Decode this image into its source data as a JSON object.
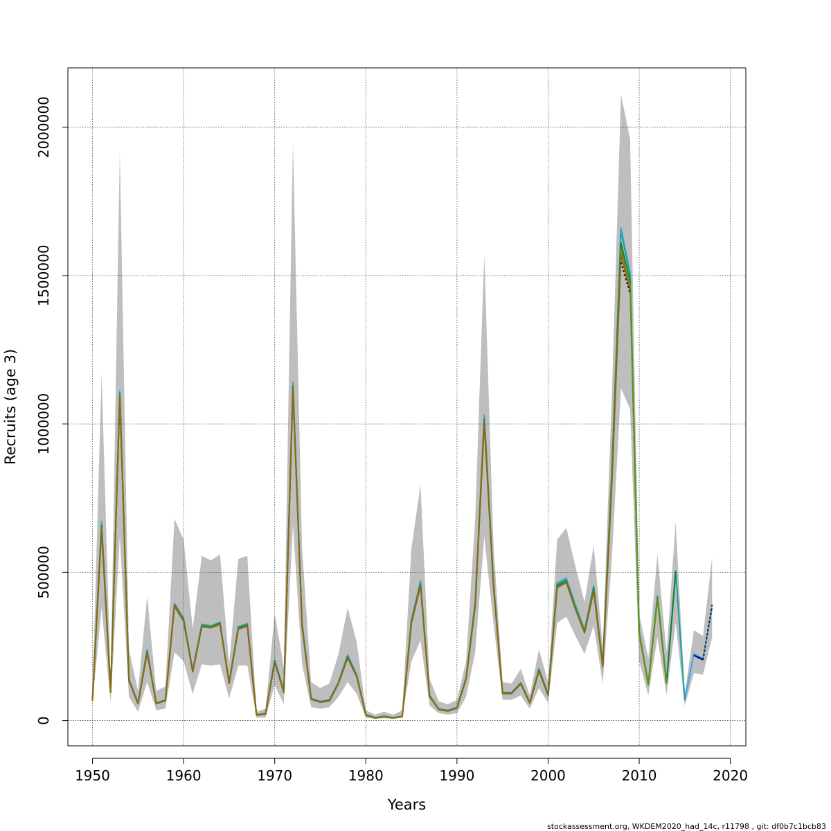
{
  "footer_text": "stockassessment.org, WKDEM2020_had_14c, r11798 , git: df0b7c1bcb83",
  "chart_data": {
    "type": "line",
    "title": "",
    "xlabel": "Years",
    "ylabel": "Recruits (age 3)",
    "xlim": [
      1947.3,
      2021.7
    ],
    "ylim": [
      -85000,
      2200000
    ],
    "x_ticks": [
      1950,
      1960,
      1970,
      1980,
      1990,
      2000,
      2010,
      2020
    ],
    "y_ticks": [
      0,
      500000,
      1000000,
      1500000,
      2000000
    ],
    "x_tick_labels": [
      "1950",
      "1960",
      "1970",
      "1980",
      "1990",
      "2000",
      "2010",
      "2020"
    ],
    "y_tick_labels": [
      "0",
      "500000",
      "1000000",
      "1500000",
      "2000000"
    ],
    "grid": true,
    "band_color": "#bebebe",
    "x": [
      1950,
      1951,
      1952,
      1953,
      1954,
      1955,
      1956,
      1957,
      1958,
      1959,
      1960,
      1961,
      1962,
      1963,
      1964,
      1965,
      1966,
      1967,
      1968,
      1969,
      1970,
      1971,
      1972,
      1973,
      1974,
      1975,
      1976,
      1977,
      1978,
      1979,
      1980,
      1981,
      1982,
      1983,
      1984,
      1985,
      1986,
      1987,
      1988,
      1989,
      1990,
      1991,
      1992,
      1993,
      1994,
      1995,
      1996,
      1997,
      1998,
      1999,
      2000,
      2001,
      2002,
      2003,
      2004,
      2005,
      2006,
      2007,
      2008,
      2009,
      2010,
      2011,
      2012,
      2013,
      2014,
      2015,
      2016,
      2017,
      2018
    ],
    "band_lower": [
      60000,
      380000,
      60000,
      620000,
      80000,
      30000,
      130000,
      35000,
      40000,
      230000,
      200000,
      90000,
      190000,
      185000,
      190000,
      75000,
      185000,
      185000,
      10000,
      10000,
      120000,
      55000,
      660000,
      190000,
      45000,
      40000,
      45000,
      80000,
      130000,
      90000,
      10000,
      5000,
      8000,
      5000,
      10000,
      200000,
      270000,
      50000,
      25000,
      20000,
      25000,
      80000,
      230000,
      620000,
      330000,
      70000,
      70000,
      85000,
      40000,
      110000,
      60000,
      330000,
      350000,
      285000,
      225000,
      320000,
      125000,
      550000,
      1120000,
      1050000,
      200000,
      85000,
      280000,
      85000,
      330000,
      50000,
      160000,
      155000,
      280000
    ],
    "band_upper": [
      90000,
      1170000,
      130000,
      1920000,
      240000,
      100000,
      420000,
      100000,
      115000,
      680000,
      610000,
      310000,
      555000,
      540000,
      560000,
      190000,
      545000,
      555000,
      30000,
      40000,
      360000,
      180000,
      1950000,
      580000,
      130000,
      110000,
      125000,
      225000,
      380000,
      265000,
      35000,
      20000,
      30000,
      20000,
      35000,
      580000,
      795000,
      140000,
      65000,
      55000,
      70000,
      200000,
      680000,
      1570000,
      600000,
      130000,
      125000,
      175000,
      85000,
      240000,
      130000,
      610000,
      650000,
      520000,
      400000,
      590000,
      250000,
      1100000,
      2110000,
      1960000,
      360000,
      210000,
      560000,
      230000,
      670000,
      90000,
      305000,
      285000,
      550000
    ],
    "series": [
      {
        "color": "#3ea0e8",
        "width": 2.0,
        "y": [
          70000,
          670000,
          100000,
          1110000,
          140000,
          60000,
          240000,
          60000,
          70000,
          395000,
          345000,
          170000,
          325000,
          320000,
          332000,
          130000,
          317000,
          327000,
          20000,
          25000,
          205000,
          100000,
          1140000,
          330000,
          75000,
          65000,
          70000,
          130000,
          222000,
          155000,
          20000,
          10000,
          15000,
          10000,
          15000,
          340000,
          470000,
          85000,
          40000,
          35000,
          45000,
          145000,
          400000,
          1030000,
          470000,
          95000,
          95000,
          128000,
          62000,
          175000,
          90000,
          465000,
          480000,
          390000,
          305000,
          455000,
          190000,
          850000,
          1660000,
          1510000,
          300000,
          125000,
          420000,
          130000,
          505000,
          70000,
          225000,
          210000,
          380000
        ]
      },
      {
        "color": "#1fa39a",
        "width": 2.0,
        "y": [
          70000,
          660000,
          98000,
          1105000,
          138000,
          59000,
          236000,
          59000,
          69000,
          392000,
          342000,
          168000,
          322000,
          318000,
          330000,
          128000,
          315000,
          325000,
          20000,
          24000,
          202000,
          98000,
          1130000,
          325000,
          74000,
          64000,
          69000,
          128000,
          218000,
          152000,
          20000,
          10000,
          15000,
          10000,
          15000,
          336000,
          464000,
          84000,
          39000,
          34000,
          44000,
          143000,
          395000,
          1020000,
          465000,
          94000,
          94000,
          126000,
          61000,
          172000,
          88000,
          460000,
          475000,
          385000,
          302000,
          450000,
          188000,
          840000,
          1650000,
          1500000,
          297000,
          123000,
          418000,
          128000,
          505000,
          68000,
          null,
          null,
          null
        ]
      },
      {
        "color": "#1a7a35",
        "width": 2.0,
        "y": [
          68000,
          655000,
          96000,
          1100000,
          136000,
          58000,
          232000,
          58000,
          68000,
          390000,
          340000,
          166000,
          320000,
          316000,
          328000,
          127000,
          312000,
          322000,
          19000,
          23000,
          200000,
          97000,
          1125000,
          322000,
          73000,
          63000,
          68000,
          127000,
          215000,
          150000,
          19000,
          9500,
          14000,
          9500,
          14000,
          333000,
          460000,
          83000,
          38000,
          33000,
          43000,
          141000,
          390000,
          1015000,
          460000,
          93000,
          93000,
          125000,
          60000,
          170000,
          87000,
          455000,
          470000,
          380000,
          300000,
          445000,
          185000,
          830000,
          1610000,
          1480000,
          294000,
          121000,
          415000,
          126000,
          500000,
          null,
          null,
          null,
          null
        ]
      },
      {
        "color": "#6a8f10",
        "width": 2.0,
        "y": [
          68000,
          650000,
          95000,
          1095000,
          135000,
          58000,
          230000,
          58000,
          67000,
          388000,
          338000,
          165000,
          318000,
          315000,
          326000,
          126000,
          310000,
          320000,
          19000,
          23000,
          198000,
          96000,
          1120000,
          320000,
          72000,
          62000,
          67000,
          126000,
          213000,
          149000,
          19000,
          9000,
          14000,
          9000,
          14000,
          330000,
          457000,
          82000,
          38000,
          33000,
          42000,
          140000,
          387000,
          1010000,
          457000,
          92000,
          92000,
          124000,
          60000,
          168000,
          86000,
          450000,
          468000,
          378000,
          298000,
          440000,
          183000,
          820000,
          1590000,
          1470000,
          292000,
          120000,
          412000,
          125000,
          null,
          null,
          null,
          null,
          null
        ]
      },
      {
        "color": "#8b6914",
        "width": 2.0,
        "y": [
          67000,
          645000,
          95000,
          1090000,
          134000,
          57000,
          228000,
          57000,
          67000,
          385000,
          335000,
          164000,
          316000,
          313000,
          324000,
          125000,
          308000,
          318000,
          18000,
          22000,
          197000,
          95000,
          1115000,
          318000,
          72000,
          62000,
          66000,
          125000,
          211000,
          148000,
          18000,
          9000,
          13000,
          9000,
          13000,
          328000,
          455000,
          81000,
          37000,
          32000,
          42000,
          139000,
          385000,
          1005000,
          455000,
          91000,
          91000,
          123000,
          59000,
          167000,
          85000,
          448000,
          465000,
          375000,
          296000,
          437000,
          181000,
          800000,
          1570000,
          1450000,
          null,
          null,
          null,
          null,
          null,
          null,
          null,
          null,
          null
        ]
      },
      {
        "color": "#00008b",
        "width": 2.2,
        "y": [
          null,
          null,
          null,
          null,
          null,
          null,
          null,
          null,
          null,
          null,
          null,
          null,
          null,
          null,
          null,
          null,
          null,
          null,
          null,
          null,
          null,
          null,
          null,
          null,
          null,
          null,
          null,
          null,
          null,
          null,
          null,
          null,
          null,
          null,
          null,
          null,
          null,
          null,
          null,
          null,
          null,
          null,
          null,
          null,
          null,
          null,
          null,
          null,
          null,
          null,
          null,
          null,
          null,
          null,
          null,
          null,
          null,
          null,
          null,
          null,
          null,
          null,
          null,
          null,
          null,
          null,
          220000,
          205000,
          null
        ]
      },
      {
        "color": "#222222",
        "width": 2.2,
        "dashed": true,
        "y": [
          null,
          null,
          null,
          null,
          null,
          null,
          null,
          null,
          null,
          null,
          null,
          null,
          null,
          null,
          null,
          null,
          null,
          null,
          null,
          null,
          null,
          null,
          null,
          null,
          null,
          null,
          null,
          null,
          null,
          null,
          null,
          null,
          null,
          null,
          null,
          null,
          null,
          null,
          null,
          null,
          null,
          null,
          null,
          null,
          null,
          null,
          null,
          null,
          null,
          null,
          null,
          null,
          null,
          null,
          null,
          null,
          null,
          null,
          1545000,
          1440000,
          null,
          null,
          null,
          null,
          null,
          null,
          null,
          205000,
          390000
        ]
      }
    ]
  }
}
